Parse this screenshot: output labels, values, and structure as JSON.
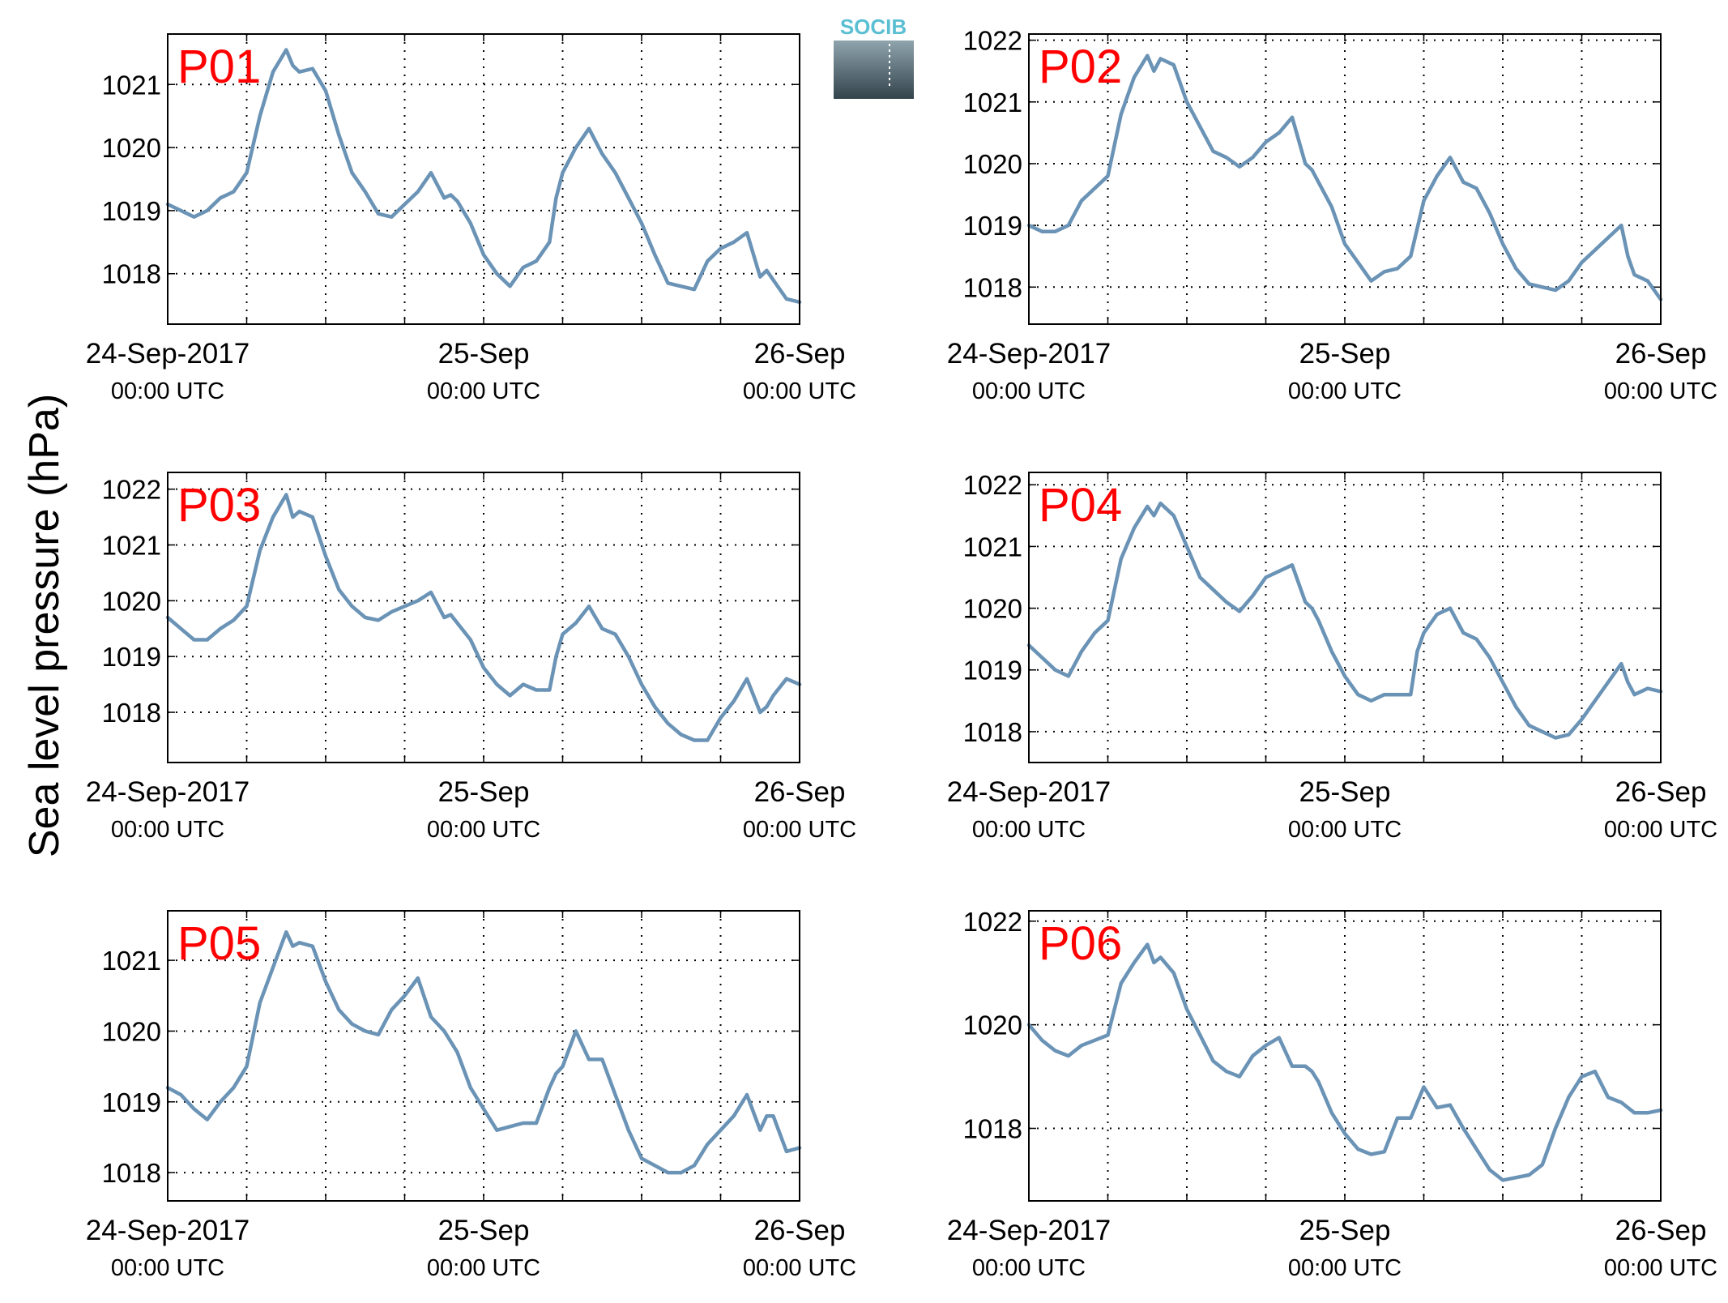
{
  "ylabel": "Sea level pressure (hPa)",
  "logo": {
    "text": "SOCIB",
    "color_text": "#5bbfd3",
    "color_top": "#8fa4ad",
    "color_bottom": "#33434c"
  },
  "line_color": "#6a93b6",
  "label_color": "#ff0000",
  "x_tick_labels": [
    {
      "date": "24-Sep-2017",
      "time": "00:00 UTC"
    },
    {
      "date": "25-Sep",
      "time": "00:00 UTC"
    },
    {
      "date": "26-Sep",
      "time": "00:00 UTC"
    }
  ],
  "chart_data": [
    {
      "type": "line",
      "label": "P01",
      "x_unit": "hours since 24-Sep-2017 00:00 UTC",
      "xlim": [
        0,
        48
      ],
      "ylim": [
        1017.2,
        1021.8
      ],
      "yticks": [
        1018,
        1019,
        1020,
        1021
      ],
      "grid": true,
      "x": [
        0,
        1,
        2,
        3,
        4,
        5,
        6,
        7,
        8,
        9,
        9.5,
        10,
        11,
        12,
        13,
        14,
        15,
        16,
        17,
        18,
        19,
        20,
        21,
        21.5,
        22,
        23,
        24,
        25,
        26,
        27,
        28,
        29,
        29.5,
        30,
        31,
        32,
        33,
        34,
        35,
        36,
        37,
        38,
        39,
        40,
        41,
        42,
        43,
        44,
        45,
        45.5,
        46,
        47,
        48
      ],
      "y": [
        1019.1,
        1019.0,
        1018.9,
        1019.0,
        1019.2,
        1019.3,
        1019.6,
        1020.5,
        1021.2,
        1021.55,
        1021.3,
        1021.2,
        1021.25,
        1020.9,
        1020.2,
        1019.6,
        1019.3,
        1018.95,
        1018.9,
        1019.1,
        1019.3,
        1019.6,
        1019.2,
        1019.25,
        1019.15,
        1018.8,
        1018.3,
        1018.0,
        1017.8,
        1018.1,
        1018.2,
        1018.5,
        1019.2,
        1019.6,
        1020.0,
        1020.3,
        1019.9,
        1019.6,
        1019.2,
        1018.8,
        1018.3,
        1017.85,
        1017.8,
        1017.75,
        1018.2,
        1018.4,
        1018.5,
        1018.65,
        1017.95,
        1018.05,
        1017.9,
        1017.6,
        1017.55
      ]
    },
    {
      "type": "line",
      "label": "P02",
      "x_unit": "hours since 24-Sep-2017 00:00 UTC",
      "xlim": [
        0,
        48
      ],
      "ylim": [
        1017.4,
        1022.1
      ],
      "yticks": [
        1018,
        1019,
        1020,
        1021,
        1022
      ],
      "grid": true,
      "x": [
        0,
        1,
        2,
        3,
        4,
        5,
        6,
        7,
        8,
        9,
        9.5,
        10,
        11,
        12,
        13,
        14,
        15,
        16,
        17,
        18,
        19,
        20,
        21,
        21.5,
        22,
        23,
        24,
        25,
        26,
        27,
        28,
        29,
        30,
        31,
        32,
        33,
        34,
        35,
        36,
        37,
        38,
        39,
        40,
        41,
        42,
        43,
        44,
        45,
        45.5,
        46,
        47,
        48
      ],
      "y": [
        1019.0,
        1018.9,
        1018.9,
        1019.0,
        1019.4,
        1019.6,
        1019.8,
        1020.8,
        1021.4,
        1021.75,
        1021.5,
        1021.7,
        1021.6,
        1021.0,
        1020.6,
        1020.2,
        1020.1,
        1019.95,
        1020.1,
        1020.35,
        1020.5,
        1020.75,
        1020.0,
        1019.9,
        1019.7,
        1019.3,
        1018.7,
        1018.4,
        1018.1,
        1018.25,
        1018.3,
        1018.5,
        1019.4,
        1019.8,
        1020.1,
        1019.7,
        1019.6,
        1019.2,
        1018.7,
        1018.3,
        1018.05,
        1018.0,
        1017.95,
        1018.1,
        1018.4,
        1018.6,
        1018.8,
        1019.0,
        1018.5,
        1018.2,
        1018.1,
        1017.8
      ]
    },
    {
      "type": "line",
      "label": "P03",
      "x_unit": "hours since 24-Sep-2017 00:00 UTC",
      "xlim": [
        0,
        48
      ],
      "ylim": [
        1017.1,
        1022.3
      ],
      "yticks": [
        1018,
        1019,
        1020,
        1021,
        1022
      ],
      "grid": true,
      "x": [
        0,
        1,
        2,
        3,
        4,
        5,
        6,
        7,
        8,
        9,
        9.5,
        10,
        11,
        12,
        13,
        14,
        15,
        16,
        17,
        18,
        19,
        20,
        21,
        21.5,
        22,
        23,
        24,
        25,
        26,
        27,
        28,
        29,
        29.5,
        30,
        31,
        32,
        33,
        34,
        35,
        36,
        37,
        38,
        39,
        40,
        41,
        42,
        43,
        44,
        45,
        45.5,
        46,
        47,
        48
      ],
      "y": [
        1019.7,
        1019.5,
        1019.3,
        1019.3,
        1019.5,
        1019.65,
        1019.9,
        1020.9,
        1021.5,
        1021.9,
        1021.5,
        1021.6,
        1021.5,
        1020.8,
        1020.2,
        1019.9,
        1019.7,
        1019.65,
        1019.8,
        1019.9,
        1020.0,
        1020.15,
        1019.7,
        1019.75,
        1019.6,
        1019.3,
        1018.8,
        1018.5,
        1018.3,
        1018.5,
        1018.4,
        1018.4,
        1019.0,
        1019.4,
        1019.6,
        1019.9,
        1019.5,
        1019.4,
        1019.0,
        1018.5,
        1018.1,
        1017.8,
        1017.6,
        1017.5,
        1017.5,
        1017.9,
        1018.2,
        1018.6,
        1018.0,
        1018.1,
        1018.3,
        1018.6,
        1018.5
      ]
    },
    {
      "type": "line",
      "label": "P04",
      "x_unit": "hours since 24-Sep-2017 00:00 UTC",
      "xlim": [
        0,
        48
      ],
      "ylim": [
        1017.5,
        1022.2
      ],
      "yticks": [
        1018,
        1019,
        1020,
        1021,
        1022
      ],
      "grid": true,
      "x": [
        0,
        1,
        2,
        3,
        4,
        5,
        6,
        7,
        8,
        9,
        9.5,
        10,
        11,
        12,
        13,
        14,
        15,
        16,
        17,
        18,
        19,
        20,
        21,
        21.5,
        22,
        23,
        24,
        25,
        26,
        27,
        28,
        29,
        29.5,
        30,
        31,
        32,
        33,
        34,
        35,
        36,
        37,
        38,
        39,
        40,
        41,
        42,
        43,
        44,
        45,
        45.5,
        46,
        47,
        48
      ],
      "y": [
        1019.4,
        1019.2,
        1019.0,
        1018.9,
        1019.3,
        1019.6,
        1019.8,
        1020.8,
        1021.3,
        1021.65,
        1021.5,
        1021.7,
        1021.5,
        1021.0,
        1020.5,
        1020.3,
        1020.1,
        1019.95,
        1020.2,
        1020.5,
        1020.6,
        1020.7,
        1020.1,
        1020.0,
        1019.8,
        1019.3,
        1018.9,
        1018.6,
        1018.5,
        1018.6,
        1018.6,
        1018.6,
        1019.3,
        1019.6,
        1019.9,
        1020.0,
        1019.6,
        1019.5,
        1019.2,
        1018.8,
        1018.4,
        1018.1,
        1018.0,
        1017.9,
        1017.95,
        1018.2,
        1018.5,
        1018.8,
        1019.1,
        1018.8,
        1018.6,
        1018.7,
        1018.65
      ]
    },
    {
      "type": "line",
      "label": "P05",
      "x_unit": "hours since 24-Sep-2017 00:00 UTC",
      "xlim": [
        0,
        48
      ],
      "ylim": [
        1017.6,
        1021.7
      ],
      "yticks": [
        1018,
        1019,
        1020,
        1021
      ],
      "grid": true,
      "x": [
        0,
        1,
        2,
        3,
        4,
        5,
        6,
        7,
        8,
        9,
        9.5,
        10,
        11,
        12,
        13,
        14,
        15,
        16,
        17,
        18,
        19,
        20,
        21,
        21.5,
        22,
        23,
        24,
        25,
        26,
        27,
        28,
        29,
        29.5,
        30,
        31,
        32,
        33,
        34,
        35,
        36,
        37,
        38,
        39,
        40,
        41,
        42,
        43,
        44,
        45,
        45.5,
        46,
        47,
        48
      ],
      "y": [
        1019.2,
        1019.1,
        1018.9,
        1018.75,
        1019.0,
        1019.2,
        1019.5,
        1020.4,
        1020.9,
        1021.4,
        1021.2,
        1021.25,
        1021.2,
        1020.7,
        1020.3,
        1020.1,
        1020.0,
        1019.95,
        1020.3,
        1020.5,
        1020.75,
        1020.2,
        1020.0,
        1019.85,
        1019.7,
        1019.2,
        1018.9,
        1018.6,
        1018.65,
        1018.7,
        1018.7,
        1019.2,
        1019.4,
        1019.5,
        1020.0,
        1019.6,
        1019.6,
        1019.1,
        1018.6,
        1018.2,
        1018.1,
        1018.0,
        1018.0,
        1018.1,
        1018.4,
        1018.6,
        1018.8,
        1019.1,
        1018.6,
        1018.8,
        1018.8,
        1018.3,
        1018.35
      ]
    },
    {
      "type": "line",
      "label": "P06",
      "x_unit": "hours since 24-Sep-2017 00:00 UTC",
      "xlim": [
        0,
        48
      ],
      "ylim": [
        1016.6,
        1022.2
      ],
      "yticks": [
        1018,
        1020,
        1022
      ],
      "grid": true,
      "x": [
        0,
        1,
        2,
        3,
        4,
        5,
        6,
        7,
        8,
        9,
        9.5,
        10,
        11,
        12,
        13,
        14,
        15,
        16,
        17,
        18,
        19,
        20,
        21,
        21.5,
        22,
        23,
        24,
        25,
        26,
        27,
        28,
        29,
        29.5,
        30,
        31,
        32,
        33,
        34,
        35,
        36,
        37,
        38,
        39,
        40,
        41,
        42,
        43,
        44,
        45,
        45.5,
        46,
        47,
        48
      ],
      "y": [
        1020.0,
        1019.7,
        1019.5,
        1019.4,
        1019.6,
        1019.7,
        1019.8,
        1020.8,
        1021.2,
        1021.55,
        1021.2,
        1021.3,
        1021.0,
        1020.3,
        1019.8,
        1019.3,
        1019.1,
        1019.0,
        1019.4,
        1019.6,
        1019.75,
        1019.2,
        1019.2,
        1019.1,
        1018.9,
        1018.3,
        1017.9,
        1017.6,
        1017.5,
        1017.55,
        1018.2,
        1018.2,
        1018.5,
        1018.8,
        1018.4,
        1018.45,
        1018.0,
        1017.6,
        1017.2,
        1017.0,
        1017.05,
        1017.1,
        1017.3,
        1018.0,
        1018.6,
        1019.0,
        1019.1,
        1018.6,
        1018.5,
        1018.4,
        1018.3,
        1018.3,
        1018.35
      ]
    }
  ]
}
